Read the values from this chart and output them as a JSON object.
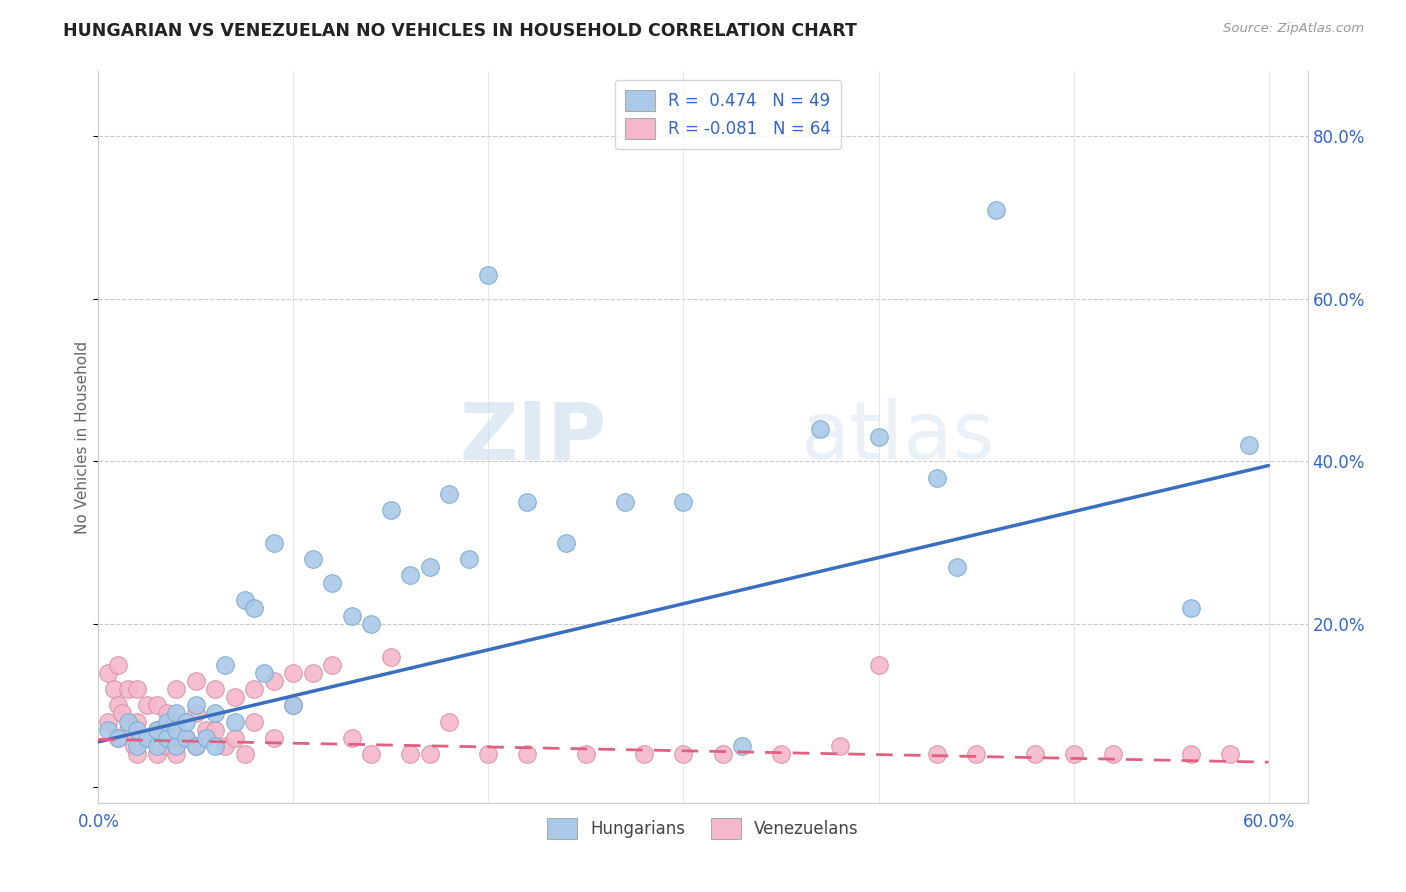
{
  "title": "HUNGARIAN VS VENEZUELAN NO VEHICLES IN HOUSEHOLD CORRELATION CHART",
  "source": "Source: ZipAtlas.com",
  "ylabel": "No Vehicles in Household",
  "xlim": [
    0.0,
    0.62
  ],
  "ylim": [
    -0.02,
    0.88
  ],
  "yticks": [
    0.0,
    0.2,
    0.4,
    0.6,
    0.8
  ],
  "xticks": [
    0.0,
    0.1,
    0.2,
    0.3,
    0.4,
    0.5,
    0.6
  ],
  "xtick_labels": [
    "0.0%",
    "",
    "",
    "",
    "",
    "",
    "60.0%"
  ],
  "ytick_labels_right": [
    "",
    "20.0%",
    "40.0%",
    "60.0%",
    "80.0%"
  ],
  "watermark": "ZIPatlas",
  "blue_color": "#aac9e8",
  "pink_color": "#f5b8cb",
  "blue_line_color": "#3a6fbf",
  "pink_line_color": "#e06080",
  "R_hungarian": 0.474,
  "N_hungarian": 49,
  "R_venezuelan": -0.081,
  "N_venezuelan": 64,
  "legend_label_hungarian": "Hungarians",
  "legend_label_venezuelan": "Venezuelans",
  "hungarian_x": [
    0.005,
    0.01,
    0.015,
    0.02,
    0.02,
    0.025,
    0.03,
    0.03,
    0.035,
    0.035,
    0.04,
    0.04,
    0.04,
    0.045,
    0.045,
    0.05,
    0.05,
    0.055,
    0.06,
    0.06,
    0.065,
    0.07,
    0.075,
    0.08,
    0.085,
    0.09,
    0.1,
    0.11,
    0.12,
    0.13,
    0.14,
    0.15,
    0.16,
    0.17,
    0.18,
    0.19,
    0.2,
    0.22,
    0.24,
    0.27,
    0.3,
    0.33,
    0.37,
    0.4,
    0.43,
    0.44,
    0.46,
    0.56,
    0.59
  ],
  "hungarian_y": [
    0.07,
    0.06,
    0.08,
    0.05,
    0.07,
    0.06,
    0.05,
    0.07,
    0.06,
    0.08,
    0.05,
    0.07,
    0.09,
    0.06,
    0.08,
    0.05,
    0.1,
    0.06,
    0.05,
    0.09,
    0.15,
    0.08,
    0.23,
    0.22,
    0.14,
    0.3,
    0.1,
    0.28,
    0.25,
    0.21,
    0.2,
    0.34,
    0.26,
    0.27,
    0.36,
    0.28,
    0.63,
    0.35,
    0.3,
    0.35,
    0.35,
    0.05,
    0.44,
    0.43,
    0.38,
    0.27,
    0.71,
    0.22,
    0.42
  ],
  "venezuelan_x": [
    0.005,
    0.005,
    0.008,
    0.01,
    0.01,
    0.01,
    0.012,
    0.015,
    0.015,
    0.018,
    0.02,
    0.02,
    0.02,
    0.025,
    0.025,
    0.03,
    0.03,
    0.03,
    0.035,
    0.035,
    0.04,
    0.04,
    0.04,
    0.045,
    0.05,
    0.05,
    0.05,
    0.055,
    0.06,
    0.06,
    0.065,
    0.07,
    0.07,
    0.075,
    0.08,
    0.08,
    0.09,
    0.09,
    0.1,
    0.1,
    0.11,
    0.12,
    0.13,
    0.14,
    0.15,
    0.16,
    0.17,
    0.18,
    0.2,
    0.22,
    0.25,
    0.28,
    0.3,
    0.32,
    0.35,
    0.38,
    0.4,
    0.43,
    0.45,
    0.48,
    0.5,
    0.52,
    0.56,
    0.58
  ],
  "venezuelan_y": [
    0.14,
    0.08,
    0.12,
    0.15,
    0.1,
    0.06,
    0.09,
    0.12,
    0.07,
    0.05,
    0.12,
    0.08,
    0.04,
    0.1,
    0.06,
    0.1,
    0.07,
    0.04,
    0.09,
    0.05,
    0.12,
    0.08,
    0.04,
    0.06,
    0.13,
    0.09,
    0.05,
    0.07,
    0.12,
    0.07,
    0.05,
    0.11,
    0.06,
    0.04,
    0.12,
    0.08,
    0.13,
    0.06,
    0.14,
    0.1,
    0.14,
    0.15,
    0.06,
    0.04,
    0.16,
    0.04,
    0.04,
    0.08,
    0.04,
    0.04,
    0.04,
    0.04,
    0.04,
    0.04,
    0.04,
    0.05,
    0.15,
    0.04,
    0.04,
    0.04,
    0.04,
    0.04,
    0.04,
    0.04
  ],
  "hun_line_x0": 0.0,
  "hun_line_x1": 0.6,
  "hun_line_y0": 0.055,
  "hun_line_y1": 0.395,
  "ven_line_x0": 0.0,
  "ven_line_x1": 0.6,
  "ven_line_y0": 0.058,
  "ven_line_y1": 0.03
}
